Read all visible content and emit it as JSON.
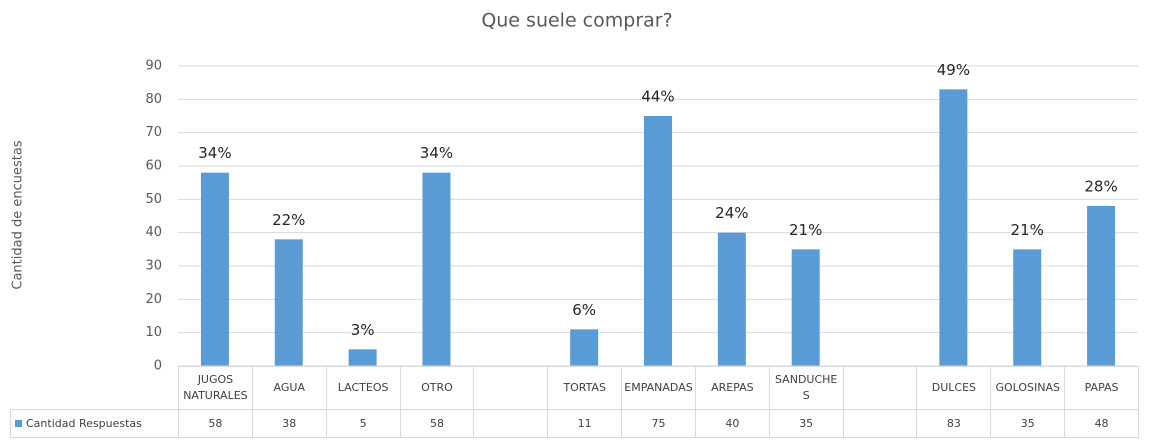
{
  "chart_data": {
    "type": "bar",
    "title": "Que suele comprar?",
    "y_label": "Cantidad de encuestas",
    "categories": [
      "JUGOS NATURALES",
      "AGUA",
      "LACTEOS",
      "OTRO",
      null,
      "TORTAS",
      "EMPANADAS",
      "AREPAS",
      "SANDUCHES",
      null,
      "DULCES",
      "GOLOSINAS",
      "PAPAS"
    ],
    "series": [
      {
        "name": "Cantidad Respuestas",
        "color": "#5b9bd5",
        "values": [
          58,
          38,
          5,
          58,
          null,
          11,
          75,
          40,
          35,
          null,
          83,
          35,
          48
        ],
        "data_labels": [
          "34%",
          "22%",
          "3%",
          "34%",
          null,
          "6%",
          "44%",
          "24%",
          "21%",
          null,
          "49%",
          "21%",
          "28%"
        ]
      }
    ],
    "ylim": [
      0,
      90
    ],
    "yticks": [
      0,
      10,
      20,
      30,
      40,
      50,
      60,
      70,
      80,
      90
    ],
    "grid": true,
    "data_table": true
  }
}
